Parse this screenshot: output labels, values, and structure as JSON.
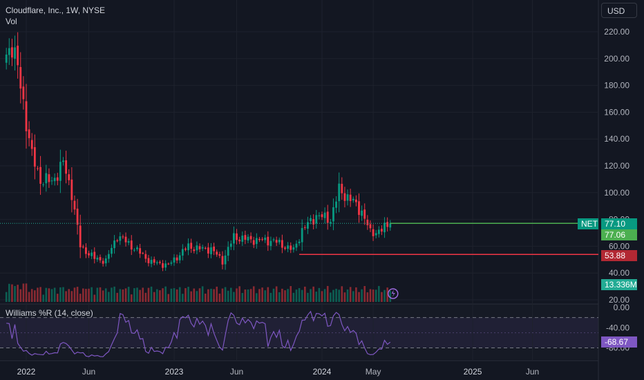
{
  "header": {
    "title": "Cloudflare, Inc., 1W, NYSE",
    "vol_label": "Vol",
    "currency": "USD"
  },
  "colors": {
    "background": "#131722",
    "up": "#089981",
    "down": "#f23645",
    "vol_up": "#0d5f53",
    "vol_down": "#8b2a32",
    "wr_line": "#7e57c2",
    "current_line": "#22ab94",
    "level_line": "#f23645",
    "grid": "#1e222d",
    "text": "#b2b5be"
  },
  "chart_data": {
    "type": "candlestick",
    "title": "Cloudflare, Inc., 1W, NYSE",
    "ylim": [
      15,
      233
    ],
    "yticks": [
      "220.00",
      "200.00",
      "180.00",
      "160.00",
      "140.00",
      "120.00",
      "100.00",
      "80.00",
      "60.00",
      "40.00",
      "20.00"
    ],
    "yticks_values": [
      220,
      200,
      180,
      160,
      140,
      120,
      100,
      80,
      60,
      40,
      20
    ],
    "xticks": [
      "2022",
      "Jun",
      "2023",
      "Jun",
      "2024",
      "May",
      "2025",
      "Jun"
    ],
    "xticks_dates": [
      "2022-01-03",
      "2022-06-06",
      "2023-01-02",
      "2023-06-05",
      "2024-01-01",
      "2024-05-06",
      "2025-01-06",
      "2025-06-02"
    ],
    "series_anchor_points": [
      {
        "date": "2021-11-15",
        "close": 203
      },
      {
        "date": "2021-11-29",
        "close": 212
      },
      {
        "date": "2021-12-20",
        "close": 180
      },
      {
        "date": "2022-01-17",
        "close": 127
      },
      {
        "date": "2022-02-07",
        "close": 110
      },
      {
        "date": "2022-03-07",
        "close": 108
      },
      {
        "date": "2022-04-04",
        "close": 122
      },
      {
        "date": "2022-04-25",
        "close": 100
      },
      {
        "date": "2022-05-16",
        "close": 60
      },
      {
        "date": "2022-06-20",
        "close": 51
      },
      {
        "date": "2022-07-18",
        "close": 49
      },
      {
        "date": "2022-08-15",
        "close": 68
      },
      {
        "date": "2022-09-12",
        "close": 62
      },
      {
        "date": "2022-10-10",
        "close": 55
      },
      {
        "date": "2022-11-07",
        "close": 48
      },
      {
        "date": "2022-12-19",
        "close": 46
      },
      {
        "date": "2023-02-06",
        "close": 60
      },
      {
        "date": "2023-03-06",
        "close": 58
      },
      {
        "date": "2023-04-03",
        "close": 58
      },
      {
        "date": "2023-05-01",
        "close": 49
      },
      {
        "date": "2023-05-29",
        "close": 67
      },
      {
        "date": "2023-07-03",
        "close": 65
      },
      {
        "date": "2023-09-04",
        "close": 64
      },
      {
        "date": "2023-10-23",
        "close": 57
      },
      {
        "date": "2023-11-13",
        "close": 72
      },
      {
        "date": "2023-12-18",
        "close": 83
      },
      {
        "date": "2024-01-22",
        "close": 80
      },
      {
        "date": "2024-02-12",
        "close": 102
      },
      {
        "date": "2024-03-11",
        "close": 95
      },
      {
        "date": "2024-04-08",
        "close": 86
      },
      {
        "date": "2024-04-29",
        "close": 70
      },
      {
        "date": "2024-05-27",
        "close": 72
      },
      {
        "date": "2024-06-17",
        "close": 77.1
      }
    ],
    "volume": {
      "label": "Vol",
      "last": "13.336M"
    },
    "price_line": {
      "symbol": "NET",
      "value": "77.10",
      "sub_value": "77.06",
      "value_number": 77.1
    },
    "level_line": {
      "value": "53.88",
      "value_number": 53.88
    },
    "indicator": {
      "name": "Williams %R (14, close)",
      "last": "-68.67",
      "ylim": [
        -100,
        0
      ],
      "bands": [
        -20,
        -80
      ],
      "yticks": [
        "0.00",
        "-40.00",
        "-80.00"
      ],
      "yticks_values": [
        0,
        -40,
        -80
      ]
    }
  }
}
